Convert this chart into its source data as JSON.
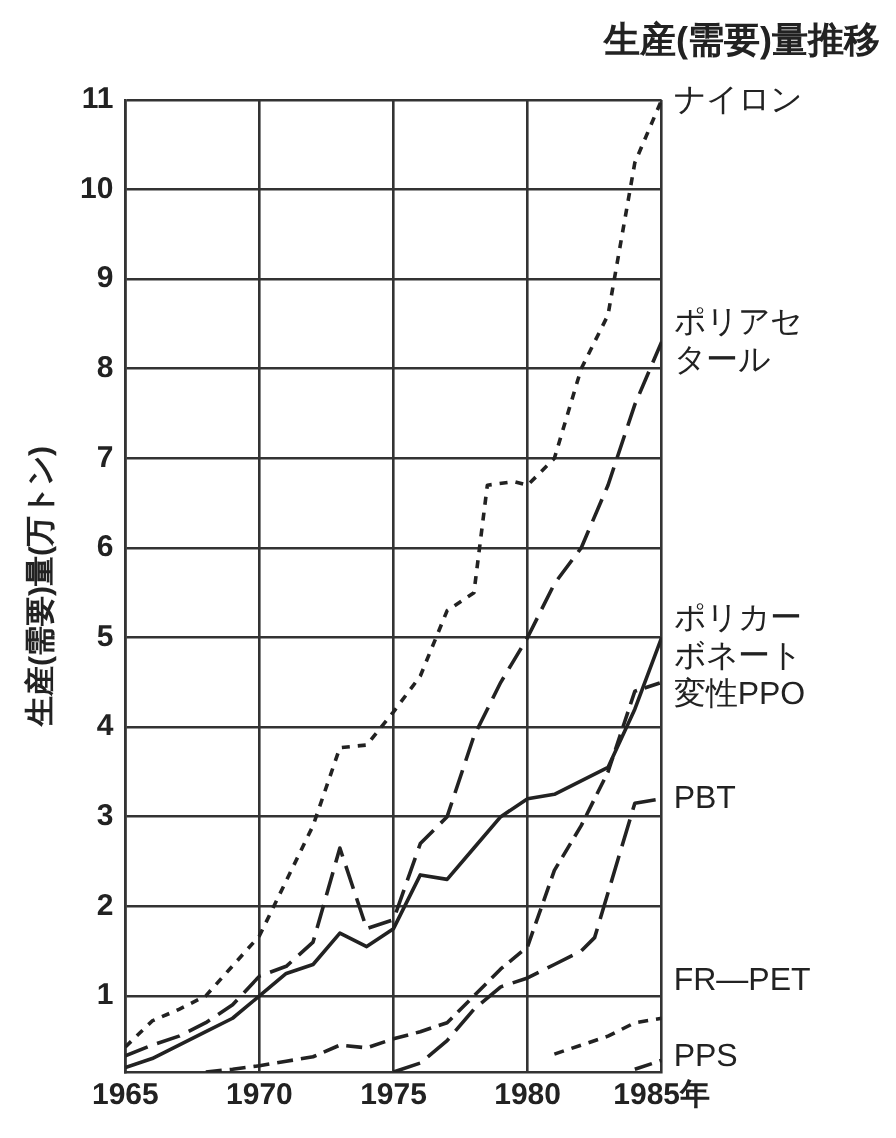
{
  "chart_data": {
    "type": "line",
    "title": "生産(需要)量推移",
    "ylabel": "生産(需要)量(万トン)",
    "xlim": [
      1965,
      1985
    ],
    "xticks": [
      1965,
      1970,
      1975,
      1980,
      {
        "value": 1985,
        "label": "1985年"
      }
    ],
    "ylim": [
      0.15,
      11
    ],
    "yticks": [
      1,
      2,
      3,
      4,
      5,
      6,
      7,
      8,
      9,
      10,
      11
    ],
    "grid": true,
    "legend": false,
    "marker": "none",
    "series": [
      {
        "name": "ナイロン",
        "color": "#222222",
        "line_style": "dashed",
        "x": [
          1965,
          1966,
          1967,
          1968,
          1970,
          1972,
          1973,
          1974,
          1975,
          1976,
          1977,
          1978,
          1978.5,
          1979.5,
          1980,
          1981,
          1982,
          1983,
          1984,
          1985
        ],
        "values": [
          0.43,
          0.72,
          0.85,
          1.0,
          1.67,
          2.9,
          3.77,
          3.8,
          4.17,
          4.57,
          5.3,
          5.5,
          6.7,
          6.74,
          6.7,
          7.0,
          8.0,
          8.6,
          10.3,
          11
        ]
      },
      {
        "name": "ポリアセタール",
        "color": "#222222",
        "line_style": "dashed",
        "x": [
          1965,
          1966,
          1967,
          1968,
          1969,
          1970,
          1971,
          1972,
          1973,
          1974,
          1975,
          1976,
          1977,
          1978,
          1979,
          1980,
          1981,
          1982,
          1983,
          1984,
          1985
        ],
        "values": [
          0.33,
          0.45,
          0.55,
          0.7,
          0.9,
          1.22,
          1.33,
          1.6,
          2.65,
          1.75,
          1.85,
          2.7,
          3.0,
          3.9,
          4.5,
          5.0,
          5.6,
          6.0,
          6.7,
          7.6,
          8.3
        ]
      },
      {
        "name": "ポリカーボネート",
        "color": "#222222",
        "line_style": "solid",
        "x": [
          1965,
          1966,
          1968,
          1969,
          1970,
          1971,
          1972,
          1973,
          1974,
          1975,
          1976,
          1977,
          1978,
          1979,
          1980,
          1981,
          1983,
          1984,
          1985
        ],
        "values": [
          0.2,
          0.3,
          0.6,
          0.75,
          1.0,
          1.25,
          1.35,
          1.7,
          1.55,
          1.75,
          2.35,
          2.3,
          2.65,
          3.0,
          3.2,
          3.25,
          3.55,
          4.2,
          5.0
        ]
      },
      {
        "name": "変性PPO",
        "color": "#222222",
        "line_style": "dashed",
        "x": [
          1968,
          1969,
          1970,
          1971,
          1972,
          1973,
          1974,
          1975,
          1976,
          1977,
          1978,
          1979,
          1980,
          1981,
          1982,
          1983,
          1984,
          1985
        ],
        "values": [
          0.15,
          0.18,
          0.22,
          0.27,
          0.32,
          0.45,
          0.42,
          0.52,
          0.6,
          0.7,
          1.0,
          1.3,
          1.55,
          2.4,
          2.9,
          3.5,
          4.4,
          4.5
        ]
      },
      {
        "name": "PBT",
        "color": "#222222",
        "line_style": "dashed",
        "x": [
          1975,
          1976,
          1977,
          1978,
          1979,
          1980,
          1981,
          1982,
          1982.5,
          1984,
          1985
        ],
        "values": [
          0.15,
          0.25,
          0.5,
          0.85,
          1.1,
          1.2,
          1.35,
          1.5,
          1.65,
          3.15,
          3.2
        ]
      },
      {
        "name": "FR—PET",
        "color": "#222222",
        "line_style": "dashed",
        "x": [
          1981,
          1982,
          1983,
          1984,
          1985
        ],
        "values": [
          0.35,
          0.45,
          0.55,
          0.7,
          0.75
        ]
      },
      {
        "name": "PPS",
        "color": "#222222",
        "line_style": "dashed",
        "x": [
          1984,
          1985
        ],
        "values": [
          0.18,
          0.28
        ]
      }
    ]
  }
}
